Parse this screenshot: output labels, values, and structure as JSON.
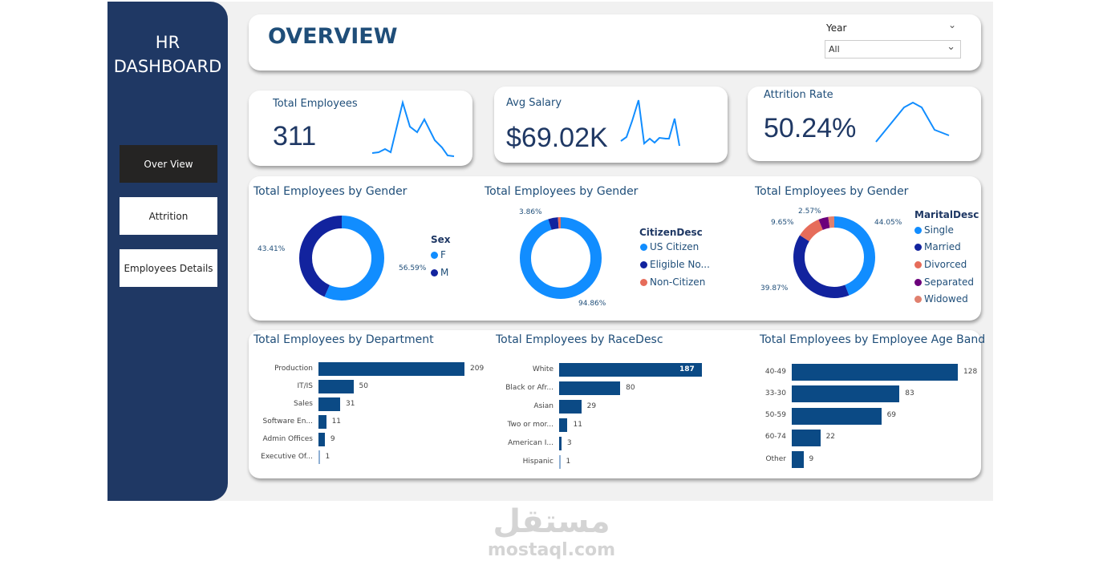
{
  "sidebar": {
    "title_line1": "HR",
    "title_line2": "DASHBOARD",
    "nav": [
      {
        "label": "Over View",
        "active": true
      },
      {
        "label": "Attrition"
      },
      {
        "label": "Employees Details"
      }
    ]
  },
  "header": {
    "title": "OVERVIEW",
    "filter_label": "Year",
    "filter_value": "All"
  },
  "kpis": [
    {
      "label": "Total Employees",
      "value": "311"
    },
    {
      "label": "Avg Salary",
      "value": "$69.02K"
    },
    {
      "label": "Attrition Rate",
      "value": "50.24%"
    }
  ],
  "colors": {
    "light_blue": "#118dff",
    "dark_blue": "#12239e",
    "coral": "#e66c5a",
    "purple": "#6b007b",
    "bar": "#0b4a85"
  },
  "chart_data": [
    {
      "type": "pie",
      "title": "Total Employees by Gender",
      "legend_title": "Sex",
      "labels": [
        "F",
        "M"
      ],
      "values": [
        56.59,
        43.41
      ],
      "value_labels": [
        "56.59%",
        "43.41%"
      ],
      "colors": [
        "#118dff",
        "#12239e"
      ]
    },
    {
      "type": "pie",
      "title": "Total Employees by Gender",
      "legend_title": "CitizenDesc",
      "labels": [
        "US Citizen",
        "Eligible No...",
        "Non-Citizen"
      ],
      "values": [
        94.86,
        3.86,
        1.28
      ],
      "value_labels": [
        "94.86%",
        "3.86%",
        ""
      ],
      "colors": [
        "#118dff",
        "#12239e",
        "#e66c5a"
      ]
    },
    {
      "type": "pie",
      "title": "Total Employees by Gender",
      "legend_title": "MaritalDesc",
      "labels": [
        "Single",
        "Married",
        "Divorced",
        "Separated",
        "Widowed"
      ],
      "values": [
        44.05,
        39.87,
        9.65,
        3.86,
        2.57
      ],
      "value_labels": [
        "44.05%",
        "39.87%",
        "9.65%",
        "",
        "2.57%"
      ],
      "colors": [
        "#118dff",
        "#12239e",
        "#e66c5a",
        "#6b007b",
        "#e0806e"
      ]
    },
    {
      "type": "bar",
      "title": "Total Employees by Department",
      "categories": [
        "Production",
        "IT/IS",
        "Sales",
        "Software En...",
        "Admin Offices",
        "Executive Of..."
      ],
      "values": [
        209,
        50,
        31,
        11,
        9,
        1
      ]
    },
    {
      "type": "bar",
      "title": "Total Employees by RaceDesc",
      "categories": [
        "White",
        "Black or Afr...",
        "Asian",
        "Two or mor...",
        "American I...",
        "Hispanic"
      ],
      "values": [
        187,
        80,
        29,
        11,
        3,
        1
      ]
    },
    {
      "type": "bar",
      "title": "Total Employees by Employee Age Band",
      "categories": [
        "40-49",
        "33-30",
        "50-59",
        "60-74",
        "Other"
      ],
      "values": [
        128,
        83,
        69,
        22,
        9
      ]
    }
  ],
  "watermark": {
    "arabic": "مستقل",
    "latin": "mostaql.com"
  }
}
